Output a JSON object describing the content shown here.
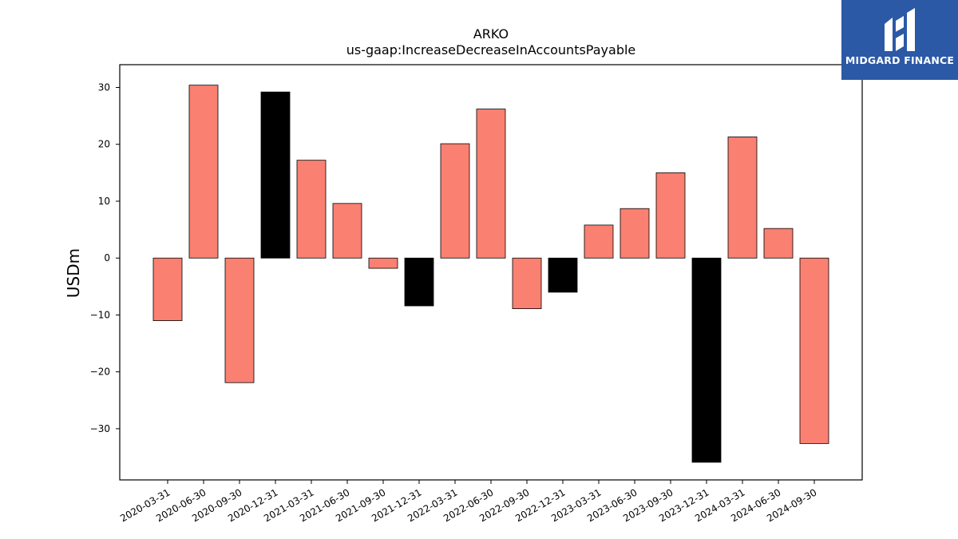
{
  "chart_data": {
    "type": "bar",
    "title": "ARKO",
    "subtitle": "us-gaap:IncreaseDecreaseInAccountsPayable",
    "xlabel": "",
    "ylabel": "USDm",
    "ylim": [
      -39,
      34
    ],
    "yticks": [
      -30,
      -20,
      -10,
      0,
      10,
      20,
      30
    ],
    "ytick_labels": [
      "−30",
      "−20",
      "−10",
      "0",
      "10",
      "20",
      "30"
    ],
    "grid": false,
    "categories": [
      "2020-03-31",
      "2020-06-30",
      "2020-09-30",
      "2020-12-31",
      "2021-03-31",
      "2021-06-30",
      "2021-09-30",
      "2021-12-31",
      "2022-03-31",
      "2022-06-30",
      "2022-09-30",
      "2022-12-31",
      "2023-03-31",
      "2023-06-30",
      "2023-09-30",
      "2023-12-31",
      "2024-03-31",
      "2024-06-30",
      "2024-09-30"
    ],
    "values": [
      -11.0,
      30.4,
      -21.9,
      29.2,
      17.2,
      9.6,
      -1.8,
      -8.4,
      20.1,
      26.2,
      -8.9,
      -6.0,
      5.8,
      8.7,
      15.0,
      -35.9,
      21.3,
      5.2,
      -32.6
    ],
    "bar_colors": [
      "#fa8072",
      "#fa8072",
      "#fa8072",
      "#000000",
      "#fa8072",
      "#fa8072",
      "#fa8072",
      "#000000",
      "#fa8072",
      "#fa8072",
      "#fa8072",
      "#000000",
      "#fa8072",
      "#fa8072",
      "#fa8072",
      "#000000",
      "#fa8072",
      "#fa8072",
      "#fa8072"
    ]
  },
  "logo": {
    "text": "MIDGARD FINANCE",
    "background": "#2b59a6"
  }
}
